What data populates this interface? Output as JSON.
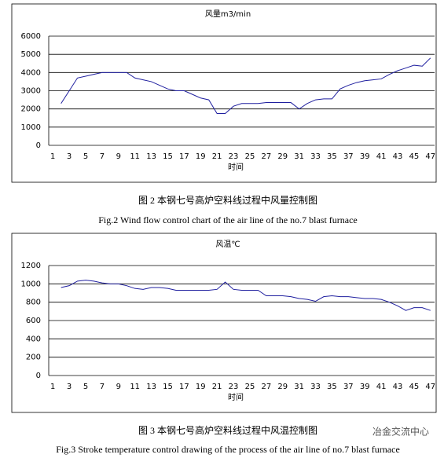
{
  "chart_data": [
    {
      "type": "line",
      "title": "风量m3/min",
      "x_label": "时间",
      "categories": [
        1,
        null,
        3,
        null,
        5,
        null,
        7,
        null,
        9,
        null,
        11,
        null,
        13,
        null,
        15,
        null,
        17,
        null,
        19,
        null,
        21,
        null,
        23,
        null,
        25,
        null,
        27,
        null,
        29,
        null,
        31,
        null,
        33,
        null,
        35,
        null,
        37,
        null,
        39,
        null,
        41,
        null,
        43,
        null,
        45,
        null,
        47
      ],
      "series": [
        {
          "color": "#1f1f9f",
          "values": [
            null,
            2300,
            3000,
            3700,
            3800,
            3900,
            4000,
            4000,
            4000,
            4000,
            3700,
            3600,
            3500,
            3300,
            3100,
            3000,
            3000,
            2800,
            2600,
            2500,
            1750,
            1750,
            2150,
            2300,
            2300,
            2300,
            2350,
            2350,
            2350,
            2350,
            2000,
            2300,
            2500,
            2550,
            2550,
            3100,
            3300,
            3450,
            3550,
            3600,
            3650,
            3900,
            4100,
            4250,
            4400,
            4350,
            4800
          ]
        }
      ],
      "ylim": [
        0,
        6000
      ],
      "yticks": [
        0,
        1000,
        2000,
        3000,
        4000,
        5000,
        6000
      ],
      "grid": true
    },
    {
      "type": "line",
      "title": "风温℃",
      "x_label": "时间",
      "categories": [
        1,
        null,
        3,
        null,
        5,
        null,
        7,
        null,
        9,
        null,
        11,
        null,
        13,
        null,
        15,
        null,
        17,
        null,
        19,
        null,
        21,
        null,
        23,
        null,
        25,
        null,
        27,
        null,
        29,
        null,
        31,
        null,
        33,
        null,
        35,
        null,
        37,
        null,
        39,
        null,
        41,
        null,
        43,
        null,
        45,
        null,
        47
      ],
      "series": [
        {
          "color": "#1f1f9f",
          "values": [
            null,
            960,
            980,
            1030,
            1040,
            1030,
            1010,
            1000,
            1000,
            980,
            950,
            940,
            960,
            960,
            950,
            930,
            930,
            930,
            930,
            930,
            940,
            1020,
            940,
            930,
            930,
            930,
            870,
            870,
            870,
            860,
            840,
            830,
            810,
            860,
            870,
            860,
            860,
            850,
            840,
            840,
            830,
            800,
            760,
            710,
            740,
            740,
            710
          ]
        }
      ],
      "ylim": [
        0,
        1200
      ],
      "yticks": [
        0,
        200,
        400,
        600,
        800,
        1000,
        1200
      ],
      "grid": true
    }
  ],
  "figures": [
    {
      "caption_cn": "图 2  本钢七号高炉空料线过程中风量控制图",
      "caption_en": "Fig.2 Wind flow control chart of the air line of the no.7 blast furnace"
    },
    {
      "caption_cn": "图 3 本钢七号高炉空料线过程中风温控制图",
      "caption_en": "Fig.3    Stroke temperature control drawing of the process of the air line of no.7 blast furnace"
    }
  ],
  "watermark": "冶金交流中心"
}
